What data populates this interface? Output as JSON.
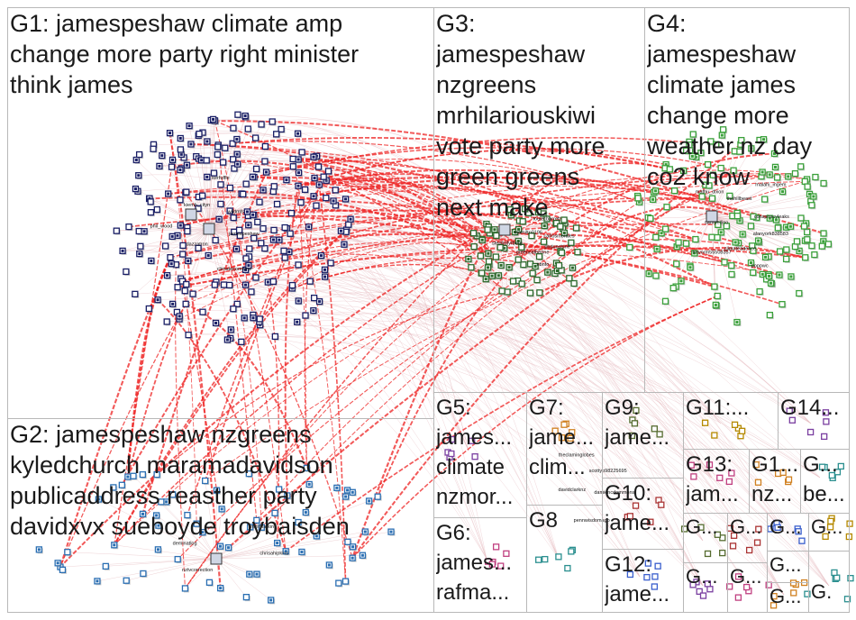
{
  "groups": [
    {
      "id": "G1",
      "label": "G1: jamespeshaw climate amp\nchange more party right minister\nthink james"
    },
    {
      "id": "G2",
      "label": "G2: jamespeshaw nzgreens\nkyledchurch maramadavidson\npublicaddress reasther party\ndavidxvx sueboyde troybaisden"
    },
    {
      "id": "G3",
      "label": "G3:\njamespeshaw\nnzgreens\nmrhilariouskiwi\nvote party more\ngreen greens\nnext make"
    },
    {
      "id": "G4",
      "label": "G4:\njamespeshaw\nclimate james\nchange more\nweather nz day\nco2 know"
    },
    {
      "id": "G5",
      "label": "G5:\njames...\nclimate\nnzmor..."
    },
    {
      "id": "G6",
      "label": "G6:\njames...\nrafma..."
    },
    {
      "id": "G7",
      "label": "G7:\njame...\nclim..."
    },
    {
      "id": "G8",
      "label": "G8"
    },
    {
      "id": "G9",
      "label": "G9:\njame..."
    },
    {
      "id": "G10",
      "label": "G10:\njame..."
    },
    {
      "id": "G11",
      "label": "G11:..."
    },
    {
      "id": "G12",
      "label": "G12:\njame..."
    },
    {
      "id": "G13",
      "label": "G13:\njam..."
    },
    {
      "id": "G14",
      "label": "G14..."
    },
    {
      "id": "G15",
      "label": "G1...\nnz..."
    },
    {
      "id": "G16",
      "label": "G...\nbe..."
    },
    {
      "id": "G17",
      "label": "G..."
    },
    {
      "id": "G18",
      "label": "G..."
    },
    {
      "id": "G19",
      "label": "G..."
    },
    {
      "id": "G20",
      "label": "G..."
    },
    {
      "id": "G21",
      "label": "G..."
    },
    {
      "id": "G22",
      "label": "G..."
    },
    {
      "id": "G23",
      "label": "G..."
    },
    {
      "id": "G24",
      "label": "G..."
    },
    {
      "id": "G25",
      "label": "G."
    }
  ],
  "node_labels": {
    "g1": [
      "jamespeshaw",
      "climatecommnz",
      "dazzatron",
      "phil_wood",
      "kiemh_cityn",
      "kerfuffle",
      "wildmfs"
    ],
    "g3": [
      "phdunshine",
      "nbnfo",
      "greencatherine",
      "stephofyrberg",
      "wamiltn0196",
      "louiecbarrett",
      "carlosmorales"
    ],
    "g4": [
      "alanyork838583",
      "poppwc",
      "climateadence",
      "trevorm55508357",
      "samuellino",
      "mathu_dixon",
      "thehillbeast",
      "malahi_ingem",
      "conspiracyleaks"
    ],
    "g2": [
      "chrisahipkins",
      "nztvcorrection",
      "deminatlog",
      "mzinflation"
    ],
    "small": [
      "damiencdommons",
      "pennwisdomagp",
      "davidclarknz",
      "theclaminglobes",
      "scottyp98225695"
    ]
  },
  "colors": {
    "g1_node": "#1a1f66",
    "g2_node": "#2b6fb3",
    "g3_node": "#2d6b2d",
    "g4_node": "#3aa03a",
    "edge_cross": "#ee2222",
    "edge_faint": "#e3b5b9",
    "box_border": "#b8b8b8"
  }
}
